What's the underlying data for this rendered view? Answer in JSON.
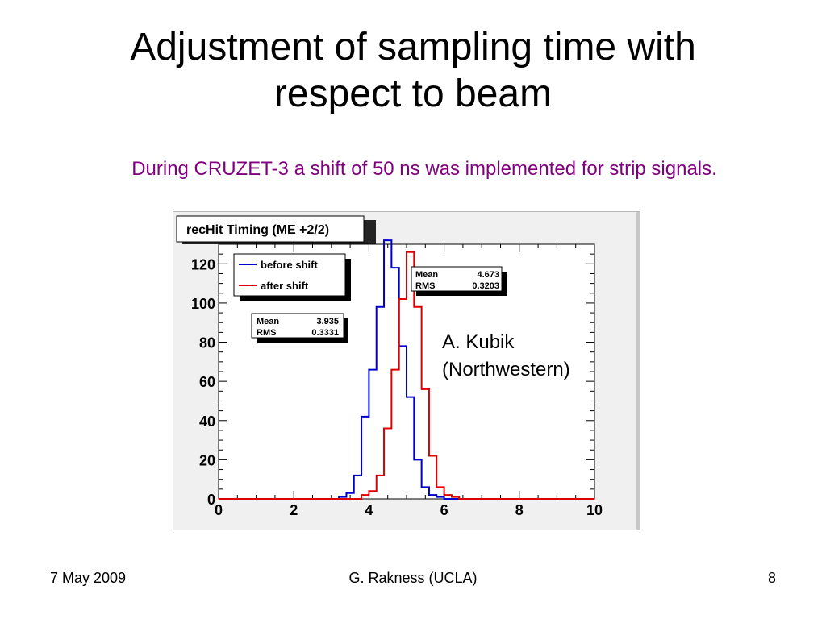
{
  "slide": {
    "title_line1": "Adjustment of sampling time with",
    "title_line2": "respect to beam",
    "subtitle": "During CRUZET-3 a shift of 50 ns was implemented for strip signals.",
    "note_line1": "A. Kubik",
    "note_line2": "(Northwestern)",
    "footer_date": "7 May 2009",
    "footer_author": "G. Rakness (UCLA)",
    "footer_page": "8"
  },
  "chart_data": {
    "type": "line",
    "title": "recHit Timing  (ME +2/2)",
    "xlim": [
      0,
      10
    ],
    "ylim": [
      0,
      130
    ],
    "x_ticks": [
      "0",
      "2",
      "4",
      "6",
      "8",
      "10"
    ],
    "y_ticks": [
      "0",
      "20",
      "40",
      "60",
      "80",
      "100",
      "120"
    ],
    "legend_position": "top-left",
    "legend": [
      {
        "label": "before shift",
        "color": "#0000cc"
      },
      {
        "label": "after shift",
        "color": "#dd0000"
      }
    ],
    "bin_width": 0.2,
    "series": [
      {
        "name": "before shift",
        "color": "#0000cc",
        "bin_start": 0,
        "values": [
          0,
          0,
          0,
          0,
          0,
          0,
          0,
          0,
          0,
          0,
          0,
          0,
          0,
          0,
          0,
          0,
          1,
          3,
          12,
          42,
          66,
          98,
          132,
          118,
          78,
          52,
          20,
          6,
          2,
          1,
          0,
          0,
          0,
          0,
          0,
          0,
          0,
          0,
          0,
          0,
          0,
          0,
          0,
          0,
          0,
          0,
          0,
          0,
          0,
          0
        ],
        "stats": {
          "mean_label": "Mean",
          "mean": "3.935",
          "rms_label": "RMS",
          "rms": "0.3331"
        }
      },
      {
        "name": "after shift",
        "color": "#dd0000",
        "bin_start": 0,
        "values": [
          0,
          0,
          0,
          0,
          0,
          0,
          0,
          0,
          0,
          0,
          0,
          0,
          0,
          0,
          0,
          0,
          0,
          0,
          0,
          2,
          4,
          12,
          36,
          66,
          102,
          126,
          98,
          56,
          22,
          6,
          2,
          1,
          0,
          0,
          0,
          0,
          0,
          0,
          0,
          0,
          0,
          0,
          0,
          0,
          0,
          0,
          0,
          0,
          0,
          0
        ],
        "stats": {
          "mean_label": "Mean",
          "mean": "4.673",
          "rms_label": "RMS",
          "rms": "0.3203"
        }
      }
    ]
  }
}
